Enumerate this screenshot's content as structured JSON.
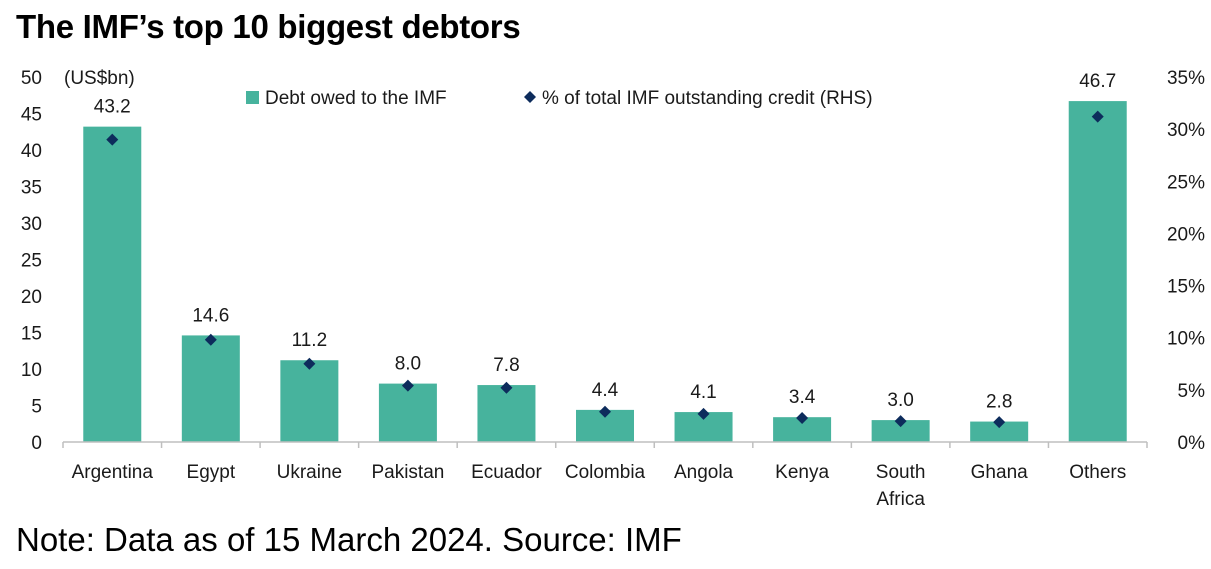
{
  "title": "The IMF’s top 10 biggest debtors",
  "note": "Note: Data as of 15 March 2024. Source: IMF",
  "chart_data": {
    "type": "bar",
    "categories": [
      "Argentina",
      "Egypt",
      "Ukraine",
      "Pakistan",
      "Ecuador",
      "Colombia",
      "Angola",
      "Kenya",
      "South Africa",
      "Ghana",
      "Others"
    ],
    "category_lines": [
      [
        "Argentina"
      ],
      [
        "Egypt"
      ],
      [
        "Ukraine"
      ],
      [
        "Pakistan"
      ],
      [
        "Ecuador"
      ],
      [
        "Colombia"
      ],
      [
        "Angola"
      ],
      [
        "Kenya"
      ],
      [
        "South",
        "Africa"
      ],
      [
        "Ghana"
      ],
      [
        "Others"
      ]
    ],
    "series": [
      {
        "name": "Debt owed to the IMF",
        "axis": "left",
        "type": "bar",
        "color": "#47b39d",
        "values": [
          43.2,
          14.6,
          11.2,
          8.0,
          7.8,
          4.4,
          4.1,
          3.4,
          3.0,
          2.8,
          46.7
        ],
        "labels": [
          "43.2",
          "14.6",
          "11.2",
          "8.0",
          "7.8",
          "4.4",
          "4.1",
          "3.4",
          "3.0",
          "2.8",
          "46.7"
        ]
      },
      {
        "name": "% of total IMF outstanding credit (RHS)",
        "axis": "right",
        "type": "scatter",
        "marker": "diamond",
        "color": "#0d2c5c",
        "values": [
          29.0,
          9.8,
          7.5,
          5.4,
          5.2,
          2.9,
          2.7,
          2.3,
          2.0,
          1.9,
          31.2
        ]
      }
    ],
    "y_left": {
      "unit_label": "(US$bn)",
      "ylim": [
        0,
        50
      ],
      "ticks": [
        "0",
        "5",
        "10",
        "15",
        "20",
        "25",
        "30",
        "35",
        "40",
        "45",
        "50"
      ]
    },
    "y_right": {
      "ylim": [
        0,
        35
      ],
      "ticks": [
        "0%",
        "5%",
        "10%",
        "15%",
        "20%",
        "25%",
        "30%",
        "35%"
      ]
    },
    "grid": false,
    "legend_position": "top-center"
  }
}
